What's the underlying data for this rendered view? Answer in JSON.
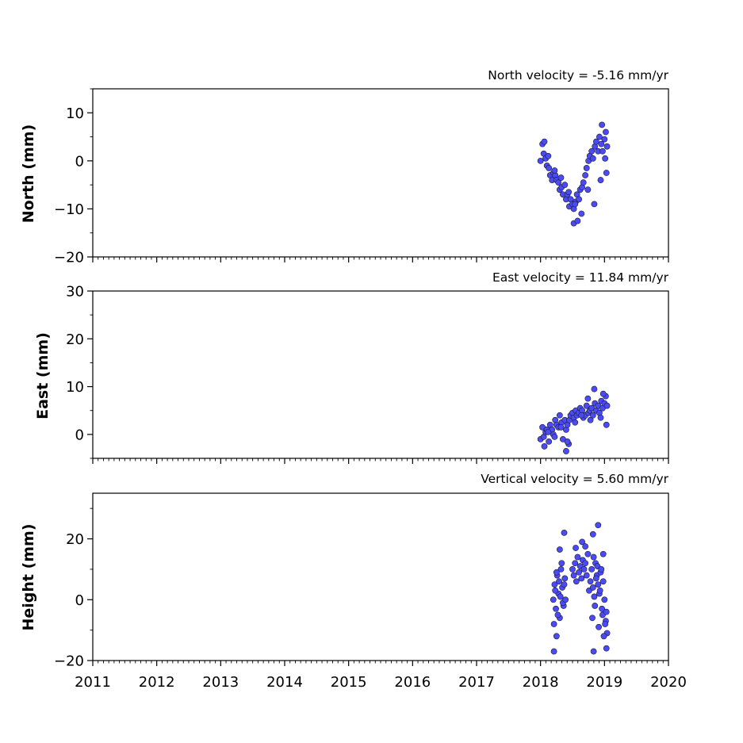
{
  "chart_data": [
    {
      "type": "scatter",
      "title": "North velocity = -5.16 mm/yr",
      "xlabel": "",
      "ylabel": "North (mm)",
      "xlim": [
        2011,
        2020
      ],
      "ylim": [
        -20,
        15
      ],
      "x_ticks": [
        "2011",
        "2012",
        "2013",
        "2014",
        "2015",
        "2016",
        "2017",
        "2018",
        "2019",
        "2020"
      ],
      "y_ticks": [
        10,
        0,
        -10,
        -20
      ],
      "y_tick_labels": [
        "10",
        "0",
        "−10",
        "−20"
      ],
      "show_x_tick_labels": false,
      "grid": false,
      "marker_color": "#4b4bf5",
      "edge_color": "#1a1a3a",
      "x": [
        2018.0,
        2018.03,
        2018.05,
        2018.08,
        2018.1,
        2018.13,
        2018.15,
        2018.18,
        2018.2,
        2018.23,
        2018.25,
        2018.28,
        2018.3,
        2018.33,
        2018.35,
        2018.38,
        2018.4,
        2018.42,
        2018.45,
        2018.47,
        2018.5,
        2018.52,
        2018.55,
        2018.57,
        2018.6,
        2018.62,
        2018.65,
        2018.67,
        2018.7,
        2018.72,
        2018.75,
        2018.77,
        2018.8,
        2018.82,
        2018.85,
        2018.87,
        2018.9,
        2018.92,
        2018.95,
        2018.97,
        2019.0,
        2019.02,
        2019.04,
        2018.06,
        2018.12,
        2018.22,
        2018.32,
        2018.44,
        2018.54,
        2018.64,
        2018.74,
        2018.84,
        2018.94,
        2019.03,
        2018.52,
        2018.58,
        2018.96,
        2019.01
      ],
      "y": [
        0.0,
        3.5,
        1.5,
        0.5,
        -1.0,
        -1.5,
        -3.0,
        -4.0,
        -2.5,
        -3.0,
        -4.0,
        -4.5,
        -6.0,
        -5.5,
        -7.0,
        -5.0,
        -8.0,
        -7.0,
        -9.5,
        -8.0,
        -9.0,
        -10.0,
        -8.5,
        -7.0,
        -8.0,
        -6.0,
        -5.5,
        -4.5,
        -3.0,
        -1.5,
        0.0,
        1.0,
        2.0,
        0.5,
        3.0,
        4.0,
        2.0,
        5.0,
        3.5,
        2.0,
        4.5,
        6.0,
        3.0,
        4.0,
        1.0,
        -2.0,
        -3.5,
        -6.5,
        -9.0,
        -11.0,
        -6.0,
        -9.0,
        -4.0,
        -2.5,
        -13.0,
        -12.5,
        7.5,
        0.5
      ]
    },
    {
      "type": "scatter",
      "title": "East velocity = 11.84 mm/yr",
      "xlabel": "",
      "ylabel": "East (mm)",
      "xlim": [
        2011,
        2020
      ],
      "ylim": [
        -5,
        30
      ],
      "x_ticks": [
        "2011",
        "2012",
        "2013",
        "2014",
        "2015",
        "2016",
        "2017",
        "2018",
        "2019",
        "2020"
      ],
      "y_ticks": [
        30,
        20,
        10,
        0
      ],
      "y_tick_labels": [
        "30",
        "20",
        "10",
        "0"
      ],
      "show_x_tick_labels": false,
      "grid": false,
      "marker_color": "#4b4bf5",
      "edge_color": "#1a1a3a",
      "x": [
        2018.0,
        2018.03,
        2018.05,
        2018.08,
        2018.1,
        2018.13,
        2018.15,
        2018.18,
        2018.2,
        2018.23,
        2018.25,
        2018.28,
        2018.3,
        2018.33,
        2018.35,
        2018.38,
        2018.4,
        2018.42,
        2018.45,
        2018.47,
        2018.5,
        2018.52,
        2018.55,
        2018.57,
        2018.6,
        2018.62,
        2018.65,
        2018.67,
        2018.7,
        2018.72,
        2018.75,
        2018.77,
        2018.8,
        2018.82,
        2018.85,
        2018.87,
        2018.9,
        2018.92,
        2018.95,
        2018.97,
        2019.0,
        2019.02,
        2019.04,
        2018.06,
        2018.12,
        2018.22,
        2018.32,
        2018.44,
        2018.54,
        2018.64,
        2018.74,
        2018.84,
        2018.94,
        2019.03,
        2018.4,
        2018.42,
        2018.78,
        2018.98
      ],
      "y": [
        -1.0,
        1.5,
        -0.5,
        0.5,
        1.0,
        -1.5,
        2.0,
        1.0,
        0.0,
        3.0,
        2.0,
        1.5,
        4.0,
        2.5,
        -1.0,
        3.0,
        1.0,
        2.0,
        3.0,
        4.0,
        4.5,
        3.5,
        5.0,
        4.0,
        4.5,
        5.5,
        5.0,
        3.5,
        4.0,
        6.0,
        4.5,
        5.0,
        5.5,
        4.0,
        6.5,
        5.0,
        6.0,
        4.5,
        7.0,
        5.5,
        6.5,
        8.0,
        6.0,
        -2.5,
        0.5,
        -0.5,
        1.5,
        -2.0,
        2.5,
        4.0,
        7.5,
        9.5,
        3.5,
        2.0,
        -3.5,
        -1.5,
        3.0,
        8.5
      ]
    },
    {
      "type": "scatter",
      "title": "Vertical velocity = 5.60 mm/yr",
      "xlabel": "",
      "ylabel": "Height (mm)",
      "xlim": [
        2011,
        2020
      ],
      "ylim": [
        -20,
        35
      ],
      "x_ticks": [
        "2011",
        "2012",
        "2013",
        "2014",
        "2015",
        "2016",
        "2017",
        "2018",
        "2019",
        "2020"
      ],
      "y_ticks": [
        20,
        0,
        -20
      ],
      "y_tick_labels": [
        "20",
        "0",
        "−20"
      ],
      "show_x_tick_labels": true,
      "grid": false,
      "marker_color": "#4b4bf5",
      "edge_color": "#1a1a3a",
      "x": [
        2018.2,
        2018.22,
        2018.24,
        2018.26,
        2018.28,
        2018.3,
        2018.32,
        2018.34,
        2018.36,
        2018.38,
        2018.21,
        2018.23,
        2018.25,
        2018.27,
        2018.29,
        2018.31,
        2018.33,
        2018.35,
        2018.37,
        2018.39,
        2018.5,
        2018.52,
        2018.54,
        2018.56,
        2018.58,
        2018.6,
        2018.62,
        2018.64,
        2018.66,
        2018.68,
        2018.7,
        2018.72,
        2018.74,
        2018.76,
        2018.78,
        2018.8,
        2018.82,
        2018.84,
        2018.86,
        2018.88,
        2018.9,
        2018.92,
        2018.94,
        2018.96,
        2018.98,
        2019.0,
        2019.02,
        2019.04,
        2018.81,
        2018.83,
        2018.85,
        2018.87,
        2018.89,
        2018.91,
        2018.93,
        2018.95,
        2018.97,
        2018.99,
        2019.01,
        2019.03,
        2018.25,
        2018.37,
        2018.65,
        2018.82,
        2018.9,
        2018.98,
        2018.21,
        2018.83,
        2019.03,
        2018.3,
        2018.55,
        2018.7
      ],
      "y": [
        0.0,
        5.0,
        -3.0,
        8.0,
        2.0,
        -6.0,
        10.0,
        4.0,
        -2.0,
        7.0,
        -8.0,
        3.0,
        9.0,
        -5.0,
        6.0,
        1.0,
        12.0,
        -1.0,
        5.0,
        0.0,
        10.0,
        8.0,
        12.0,
        6.0,
        14.0,
        9.0,
        11.0,
        7.0,
        13.0,
        10.0,
        12.0,
        8.0,
        15.0,
        3.0,
        6.0,
        10.0,
        4.0,
        1.0,
        12.0,
        8.0,
        5.0,
        2.0,
        9.0,
        -3.0,
        6.0,
        0.0,
        -7.0,
        -11.0,
        -6.0,
        14.0,
        -2.0,
        7.0,
        11.0,
        -9.0,
        3.0,
        10.0,
        -5.0,
        -12.0,
        -8.0,
        -4.0,
        -12.0,
        22.0,
        19.0,
        21.5,
        24.5,
        15.0,
        -17.0,
        -17.0,
        -16.0,
        16.5,
        17.0,
        17.5
      ]
    }
  ]
}
